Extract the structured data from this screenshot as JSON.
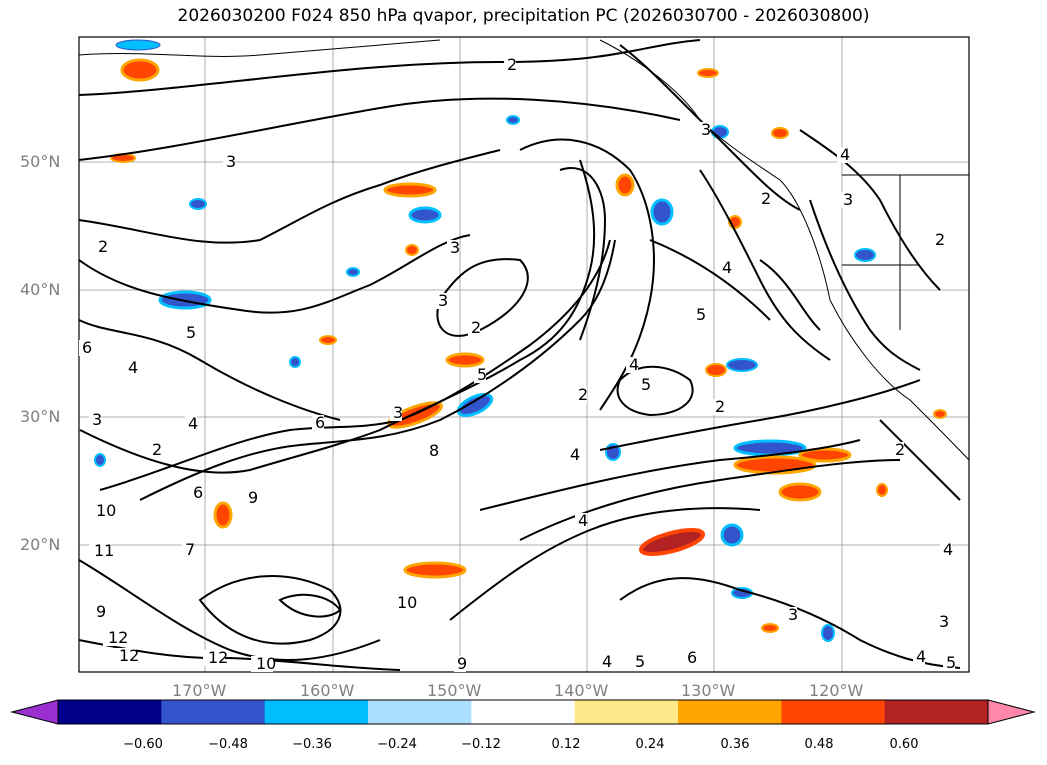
{
  "title": "2026030200 F024 850 hPa qvapor, precipitation PC (2026030700 - 2026030800)",
  "map": {
    "lat_labels": [
      "50°N",
      "40°N",
      "30°N",
      "20°N"
    ],
    "lon_labels": [
      "170°W",
      "160°W",
      "150°W",
      "140°W",
      "130°W",
      "120°W"
    ],
    "grid": true,
    "contour_labels": [
      "2",
      "3",
      "2",
      "3",
      "2",
      "3",
      "4",
      "2",
      "3",
      "5",
      "2",
      "3",
      "4",
      "5",
      "6",
      "4",
      "5",
      "2",
      "3",
      "4",
      "6",
      "3",
      "5",
      "8",
      "7",
      "6",
      "9",
      "10",
      "11",
      "4",
      "2",
      "10",
      "9",
      "12",
      "12",
      "12",
      "10",
      "9",
      "4",
      "5",
      "6",
      "4",
      "3",
      "4",
      "5",
      "4",
      "4",
      "3",
      "2",
      "2"
    ]
  },
  "colorbar": {
    "ticks": [
      "−0.60",
      "−0.48",
      "−0.36",
      "−0.24",
      "−0.12",
      "0.12",
      "0.24",
      "0.36",
      "0.48",
      "0.60"
    ],
    "colors": [
      "#9b30d0",
      "#00008b",
      "#3355cc",
      "#00bfff",
      "#aadfff",
      "#ffffff",
      "#ffe88a",
      "#ffa500",
      "#ff4500",
      "#b22222",
      "#ff88aa"
    ]
  }
}
